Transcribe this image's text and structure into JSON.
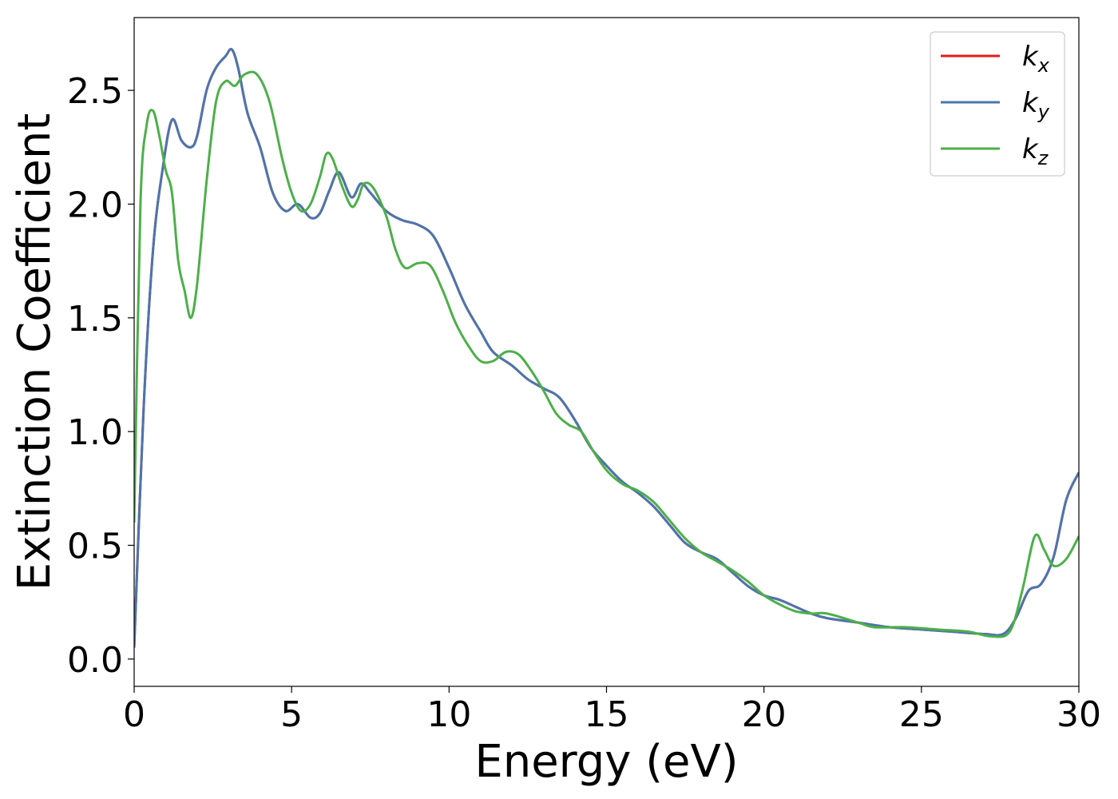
{
  "chart_data": {
    "type": "line",
    "title": "",
    "xlabel": "Energy (eV)",
    "ylabel": "Extinction Coefficient",
    "xlim": [
      0,
      30
    ],
    "ylim": [
      -0.12,
      2.82
    ],
    "x_ticks": [
      0,
      5,
      10,
      15,
      20,
      25,
      30
    ],
    "x_tick_labels": [
      "0",
      "5",
      "10",
      "15",
      "20",
      "25",
      "30"
    ],
    "y_ticks": [
      0.0,
      0.5,
      1.0,
      1.5,
      2.0,
      2.5
    ],
    "y_tick_labels": [
      "0.0",
      "0.5",
      "1.0",
      "1.5",
      "2.0",
      "2.5"
    ],
    "grid": false,
    "legend_position": "top-right",
    "series": [
      {
        "name": "k_x",
        "legend_main": "k",
        "legend_sub": "x",
        "color": "#e41a1c",
        "points": [
          [
            0,
            0.05
          ],
          [
            0.3,
            1.1
          ],
          [
            0.6,
            1.8
          ],
          [
            0.9,
            2.15
          ],
          [
            1.2,
            2.37
          ],
          [
            1.5,
            2.28
          ],
          [
            1.8,
            2.25
          ],
          [
            2.0,
            2.3
          ],
          [
            2.3,
            2.5
          ],
          [
            2.6,
            2.6
          ],
          [
            2.9,
            2.65
          ],
          [
            3.1,
            2.68
          ],
          [
            3.3,
            2.6
          ],
          [
            3.6,
            2.4
          ],
          [
            4.0,
            2.25
          ],
          [
            4.4,
            2.05
          ],
          [
            4.8,
            1.97
          ],
          [
            5.2,
            2.0
          ],
          [
            5.6,
            1.94
          ],
          [
            5.9,
            1.96
          ],
          [
            6.2,
            2.06
          ],
          [
            6.5,
            2.14
          ],
          [
            6.9,
            2.03
          ],
          [
            7.2,
            2.09
          ],
          [
            7.5,
            2.05
          ],
          [
            8.0,
            1.97
          ],
          [
            8.5,
            1.93
          ],
          [
            9.0,
            1.91
          ],
          [
            9.5,
            1.86
          ],
          [
            10.0,
            1.72
          ],
          [
            10.5,
            1.56
          ],
          [
            11.0,
            1.44
          ],
          [
            11.4,
            1.35
          ],
          [
            12.0,
            1.29
          ],
          [
            12.5,
            1.23
          ],
          [
            13.0,
            1.19
          ],
          [
            13.5,
            1.15
          ],
          [
            14.0,
            1.05
          ],
          [
            14.5,
            0.93
          ],
          [
            15.0,
            0.85
          ],
          [
            15.5,
            0.78
          ],
          [
            16.0,
            0.73
          ],
          [
            16.5,
            0.67
          ],
          [
            17.0,
            0.59
          ],
          [
            17.5,
            0.51
          ],
          [
            18.0,
            0.47
          ],
          [
            18.5,
            0.44
          ],
          [
            19.0,
            0.38
          ],
          [
            19.5,
            0.32
          ],
          [
            20.0,
            0.28
          ],
          [
            20.5,
            0.26
          ],
          [
            21.0,
            0.23
          ],
          [
            21.5,
            0.2
          ],
          [
            22.0,
            0.18
          ],
          [
            23.0,
            0.16
          ],
          [
            24.0,
            0.14
          ],
          [
            25.0,
            0.13
          ],
          [
            26.0,
            0.12
          ],
          [
            27.0,
            0.11
          ],
          [
            27.6,
            0.11
          ],
          [
            28.0,
            0.18
          ],
          [
            28.4,
            0.3
          ],
          [
            28.8,
            0.33
          ],
          [
            29.2,
            0.45
          ],
          [
            29.6,
            0.7
          ],
          [
            30.0,
            0.82
          ]
        ]
      },
      {
        "name": "k_y",
        "legend_main": "k",
        "legend_sub": "y",
        "color": "#4a76ad",
        "points": [
          [
            0,
            0.05
          ],
          [
            0.3,
            1.1
          ],
          [
            0.6,
            1.8
          ],
          [
            0.9,
            2.15
          ],
          [
            1.2,
            2.37
          ],
          [
            1.5,
            2.28
          ],
          [
            1.8,
            2.25
          ],
          [
            2.0,
            2.3
          ],
          [
            2.3,
            2.5
          ],
          [
            2.6,
            2.6
          ],
          [
            2.9,
            2.65
          ],
          [
            3.1,
            2.68
          ],
          [
            3.3,
            2.6
          ],
          [
            3.6,
            2.4
          ],
          [
            4.0,
            2.25
          ],
          [
            4.4,
            2.05
          ],
          [
            4.8,
            1.97
          ],
          [
            5.2,
            2.0
          ],
          [
            5.6,
            1.94
          ],
          [
            5.9,
            1.96
          ],
          [
            6.2,
            2.06
          ],
          [
            6.5,
            2.14
          ],
          [
            6.9,
            2.03
          ],
          [
            7.2,
            2.09
          ],
          [
            7.5,
            2.05
          ],
          [
            8.0,
            1.97
          ],
          [
            8.5,
            1.93
          ],
          [
            9.0,
            1.91
          ],
          [
            9.5,
            1.86
          ],
          [
            10.0,
            1.72
          ],
          [
            10.5,
            1.56
          ],
          [
            11.0,
            1.44
          ],
          [
            11.4,
            1.35
          ],
          [
            12.0,
            1.29
          ],
          [
            12.5,
            1.23
          ],
          [
            13.0,
            1.19
          ],
          [
            13.5,
            1.15
          ],
          [
            14.0,
            1.05
          ],
          [
            14.5,
            0.93
          ],
          [
            15.0,
            0.85
          ],
          [
            15.5,
            0.78
          ],
          [
            16.0,
            0.73
          ],
          [
            16.5,
            0.67
          ],
          [
            17.0,
            0.59
          ],
          [
            17.5,
            0.51
          ],
          [
            18.0,
            0.47
          ],
          [
            18.5,
            0.44
          ],
          [
            19.0,
            0.38
          ],
          [
            19.5,
            0.32
          ],
          [
            20.0,
            0.28
          ],
          [
            20.5,
            0.26
          ],
          [
            21.0,
            0.23
          ],
          [
            21.5,
            0.2
          ],
          [
            22.0,
            0.18
          ],
          [
            23.0,
            0.16
          ],
          [
            24.0,
            0.14
          ],
          [
            25.0,
            0.13
          ],
          [
            26.0,
            0.12
          ],
          [
            27.0,
            0.11
          ],
          [
            27.6,
            0.11
          ],
          [
            28.0,
            0.18
          ],
          [
            28.4,
            0.3
          ],
          [
            28.8,
            0.33
          ],
          [
            29.2,
            0.45
          ],
          [
            29.6,
            0.7
          ],
          [
            30.0,
            0.82
          ]
        ]
      },
      {
        "name": "k_z",
        "legend_main": "k",
        "legend_sub": "z",
        "color": "#4daf4a",
        "points": [
          [
            0,
            0.6
          ],
          [
            0.2,
            2.0
          ],
          [
            0.4,
            2.35
          ],
          [
            0.6,
            2.41
          ],
          [
            0.8,
            2.3
          ],
          [
            1.0,
            2.15
          ],
          [
            1.2,
            2.05
          ],
          [
            1.4,
            1.75
          ],
          [
            1.6,
            1.62
          ],
          [
            1.8,
            1.5
          ],
          [
            2.0,
            1.65
          ],
          [
            2.3,
            2.1
          ],
          [
            2.6,
            2.45
          ],
          [
            2.9,
            2.54
          ],
          [
            3.2,
            2.52
          ],
          [
            3.5,
            2.57
          ],
          [
            3.9,
            2.57
          ],
          [
            4.3,
            2.45
          ],
          [
            4.7,
            2.2
          ],
          [
            5.0,
            2.05
          ],
          [
            5.3,
            1.97
          ],
          [
            5.6,
            2.0
          ],
          [
            5.9,
            2.12
          ],
          [
            6.1,
            2.22
          ],
          [
            6.3,
            2.2
          ],
          [
            6.6,
            2.08
          ],
          [
            6.9,
            1.99
          ],
          [
            7.1,
            2.02
          ],
          [
            7.3,
            2.09
          ],
          [
            7.6,
            2.07
          ],
          [
            8.0,
            1.95
          ],
          [
            8.3,
            1.8
          ],
          [
            8.6,
            1.72
          ],
          [
            9.0,
            1.74
          ],
          [
            9.4,
            1.73
          ],
          [
            9.8,
            1.62
          ],
          [
            10.2,
            1.48
          ],
          [
            10.6,
            1.38
          ],
          [
            11.0,
            1.31
          ],
          [
            11.4,
            1.31
          ],
          [
            11.8,
            1.35
          ],
          [
            12.2,
            1.34
          ],
          [
            12.6,
            1.27
          ],
          [
            13.0,
            1.18
          ],
          [
            13.4,
            1.08
          ],
          [
            13.8,
            1.03
          ],
          [
            14.2,
            1.0
          ],
          [
            14.6,
            0.91
          ],
          [
            15.0,
            0.83
          ],
          [
            15.5,
            0.77
          ],
          [
            16.0,
            0.74
          ],
          [
            16.5,
            0.69
          ],
          [
            17.0,
            0.61
          ],
          [
            17.5,
            0.53
          ],
          [
            18.0,
            0.47
          ],
          [
            18.5,
            0.43
          ],
          [
            19.0,
            0.39
          ],
          [
            19.5,
            0.34
          ],
          [
            20.0,
            0.28
          ],
          [
            20.5,
            0.24
          ],
          [
            21.0,
            0.21
          ],
          [
            21.5,
            0.2
          ],
          [
            22.0,
            0.2
          ],
          [
            23.0,
            0.16
          ],
          [
            23.5,
            0.14
          ],
          [
            24.5,
            0.14
          ],
          [
            25.5,
            0.13
          ],
          [
            26.5,
            0.12
          ],
          [
            27.2,
            0.1
          ],
          [
            27.8,
            0.12
          ],
          [
            28.2,
            0.3
          ],
          [
            28.6,
            0.54
          ],
          [
            28.9,
            0.48
          ],
          [
            29.2,
            0.41
          ],
          [
            29.6,
            0.44
          ],
          [
            30.0,
            0.54
          ]
        ]
      }
    ]
  }
}
